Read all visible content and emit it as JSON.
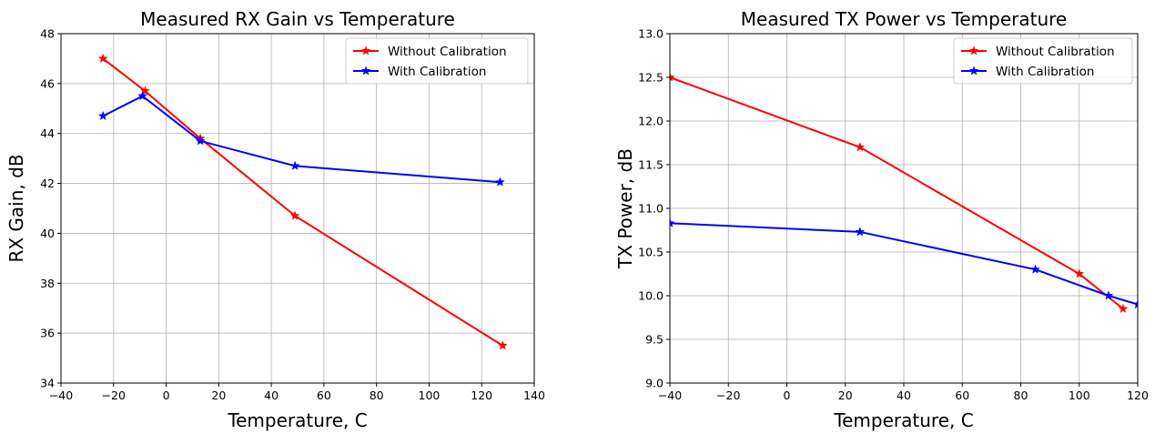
{
  "chart_data": [
    {
      "type": "line",
      "title": "Measured RX Gain vs Temperature",
      "xlabel": "Temperature, C",
      "ylabel": "RX Gain, dB",
      "xlim": [
        -40,
        140
      ],
      "ylim": [
        34,
        48
      ],
      "xticks": [
        -40,
        -20,
        0,
        20,
        40,
        60,
        80,
        100,
        120,
        140
      ],
      "yticks": [
        34,
        36,
        38,
        40,
        42,
        44,
        46,
        48
      ],
      "xtick_labels": [
        "−40",
        "−20",
        "0",
        "20",
        "40",
        "60",
        "80",
        "100",
        "120",
        "140"
      ],
      "ytick_labels": [
        "34",
        "36",
        "38",
        "40",
        "42",
        "44",
        "46",
        "48"
      ],
      "grid": true,
      "legend_position": "top-right",
      "series": [
        {
          "name": "Without Calibration",
          "color": "#ff0000",
          "marker": "star",
          "x": [
            -24,
            -8,
            13,
            49,
            128
          ],
          "y": [
            47.0,
            45.7,
            43.8,
            40.7,
            35.5
          ]
        },
        {
          "name": "With Calibration",
          "color": "#0000ff",
          "marker": "star",
          "x": [
            -24,
            -9,
            13,
            49,
            127
          ],
          "y": [
            44.7,
            45.5,
            43.7,
            42.7,
            42.05
          ]
        }
      ]
    },
    {
      "type": "line",
      "title": "Measured TX Power vs Temperature",
      "xlabel": "Temperature, C",
      "ylabel": "TX Power, dB",
      "xlim": [
        -40,
        120
      ],
      "ylim": [
        9.0,
        13.0
      ],
      "xticks": [
        -40,
        -20,
        0,
        20,
        40,
        60,
        80,
        100,
        120
      ],
      "yticks": [
        9.0,
        9.5,
        10.0,
        10.5,
        11.0,
        11.5,
        12.0,
        12.5,
        13.0
      ],
      "xtick_labels": [
        "−40",
        "−20",
        "0",
        "20",
        "40",
        "60",
        "80",
        "100",
        "120"
      ],
      "ytick_labels": [
        "9.0",
        "9.5",
        "10.0",
        "10.5",
        "11.0",
        "11.5",
        "12.0",
        "12.5",
        "13.0"
      ],
      "grid": true,
      "legend_position": "top-right",
      "series": [
        {
          "name": "Without Calibration",
          "color": "#ff0000",
          "marker": "star",
          "x": [
            -40,
            25,
            100,
            115
          ],
          "y": [
            12.5,
            11.7,
            10.25,
            9.85
          ]
        },
        {
          "name": "With Calibration",
          "color": "#0000ff",
          "marker": "star",
          "x": [
            -40,
            25,
            85,
            110,
            120
          ],
          "y": [
            10.83,
            10.73,
            10.3,
            10.0,
            9.9
          ]
        }
      ]
    }
  ]
}
